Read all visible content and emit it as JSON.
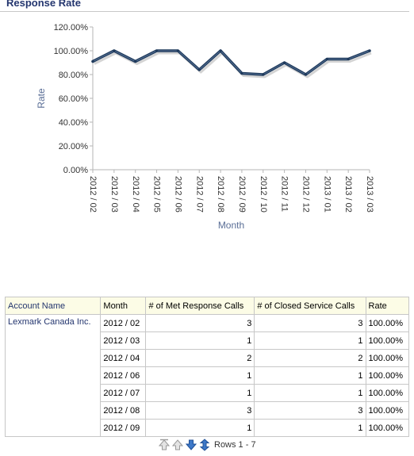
{
  "section_title": "Response Rate",
  "chart_data": {
    "type": "line",
    "categories": [
      "2012 / 02",
      "2012 / 03",
      "2012 / 04",
      "2012 / 05",
      "2012 / 06",
      "2012 / 07",
      "2012 / 08",
      "2012 / 09",
      "2012 / 10",
      "2012 / 11",
      "2012 / 12",
      "2013 / 01",
      "2013 / 02",
      "2013 / 03"
    ],
    "values": [
      91,
      100,
      91,
      100,
      100,
      84,
      100,
      81,
      80,
      90,
      80,
      93,
      93,
      100
    ],
    "yticks": [
      "0.00%",
      "20.00%",
      "40.00%",
      "60.00%",
      "80.00%",
      "100.00%",
      "120.00%"
    ],
    "ylim": [
      0,
      120
    ],
    "xlabel": "Month",
    "ylabel": "Rate",
    "line_color": "#1f3a5c",
    "grid": false
  },
  "table": {
    "headers": [
      "Account Name",
      "Month",
      "# of Met Response Calls",
      "# of Closed Service Calls",
      "Rate"
    ],
    "account": "Lexmark Canada Inc.",
    "rows": [
      {
        "month": "2012 / 02",
        "met": "3",
        "closed": "3",
        "rate": "100.00%"
      },
      {
        "month": "2012 / 03",
        "met": "1",
        "closed": "1",
        "rate": "100.00%"
      },
      {
        "month": "2012 / 04",
        "met": "2",
        "closed": "2",
        "rate": "100.00%"
      },
      {
        "month": "2012 / 06",
        "met": "1",
        "closed": "1",
        "rate": "100.00%"
      },
      {
        "month": "2012 / 07",
        "met": "1",
        "closed": "1",
        "rate": "100.00%"
      },
      {
        "month": "2012 / 08",
        "met": "3",
        "closed": "3",
        "rate": "100.00%"
      },
      {
        "month": "2012 / 09",
        "met": "1",
        "closed": "1",
        "rate": "100.00%"
      }
    ]
  },
  "pager": {
    "rows_label": "Rows 1 - 7",
    "icons": [
      "first-page-icon",
      "previous-page-icon",
      "next-page-icon",
      "all-rows-icon"
    ]
  }
}
